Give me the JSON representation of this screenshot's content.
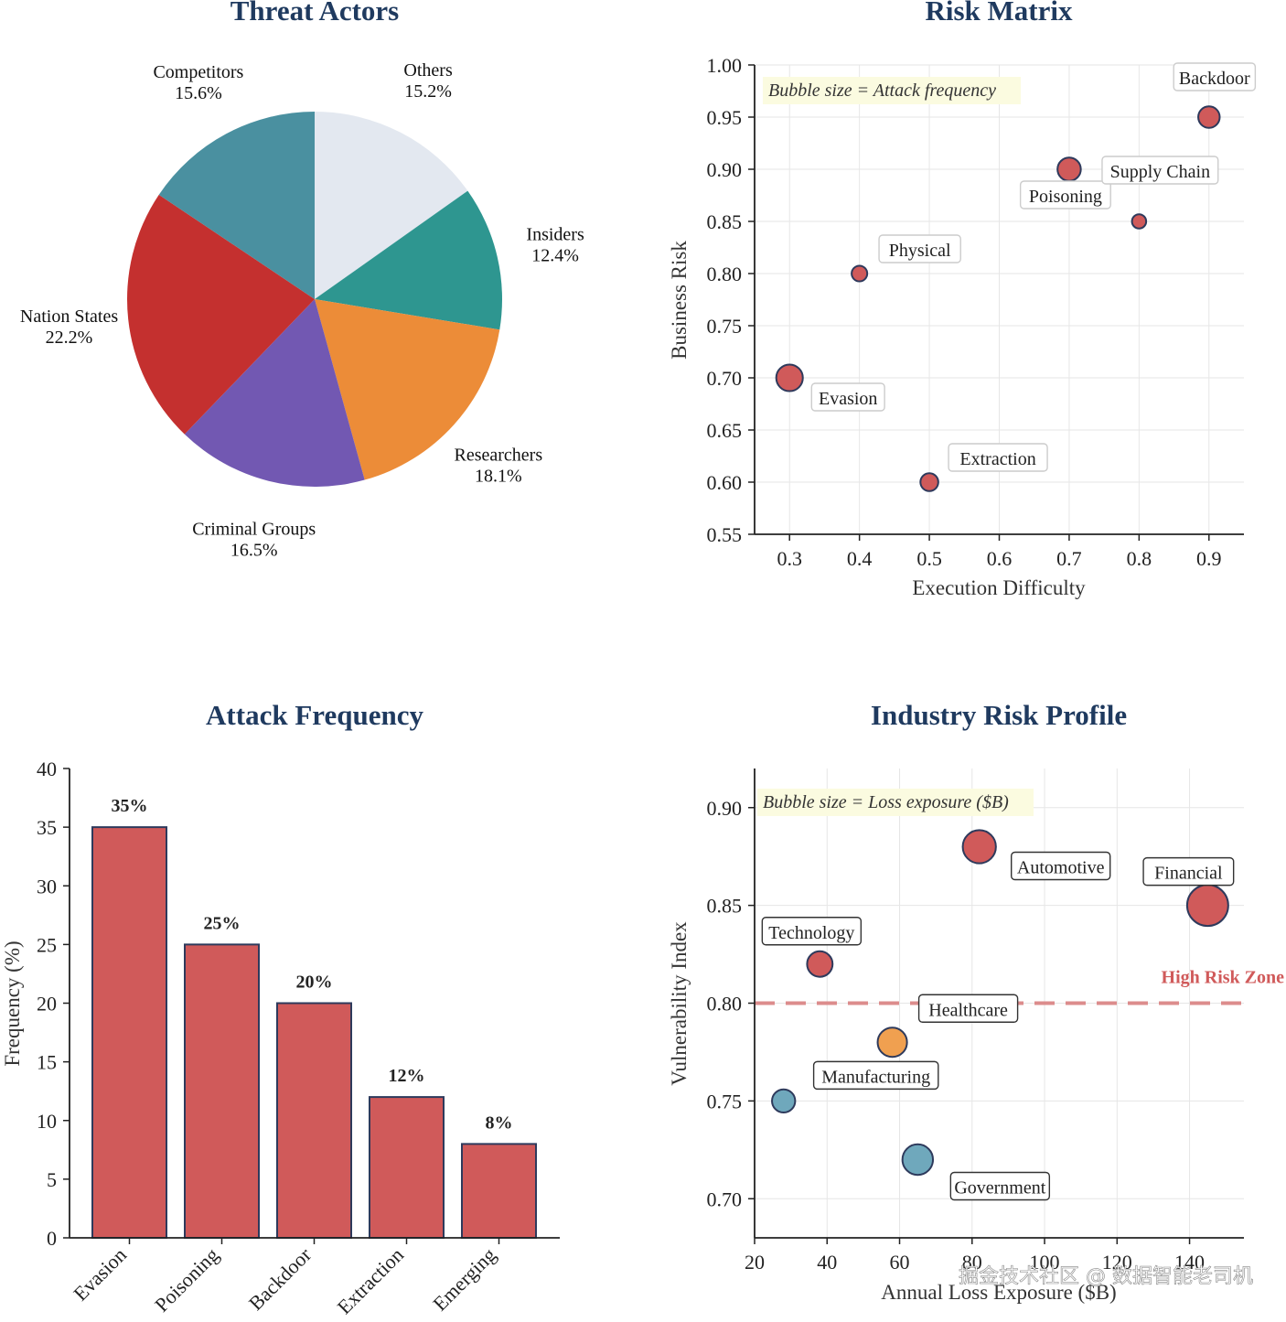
{
  "colors": {
    "title": "#1f3a5f",
    "bubble_red": "#d05a5a",
    "bubble_orange": "#f0a050",
    "bubble_blue": "#6fa8bc",
    "bubble_edge": "#2e3a5c",
    "bar_fill": "#d05a5a",
    "bar_edge": "#2e3a5c",
    "grid": "#e6e6e6",
    "note_bg": "#fbfbe0",
    "zone_line": "#dc8c8c"
  },
  "watermark": "掘金技术社区 @ 数据智能老司机",
  "chart_data": [
    {
      "id": "threat-actors",
      "type": "pie",
      "title": "Threat Actors",
      "start_angle": 90,
      "direction": "clockwise",
      "slices": [
        {
          "label": "Others",
          "pct_label": "15.2%",
          "value": 15.2,
          "color": "#e3e8f0"
        },
        {
          "label": "Insiders",
          "pct_label": "12.4%",
          "value": 12.4,
          "color": "#2e9690"
        },
        {
          "label": "Researchers",
          "pct_label": "18.1%",
          "value": 18.1,
          "color": "#ec8c38"
        },
        {
          "label": "Criminal Groups",
          "pct_label": "16.5%",
          "value": 16.5,
          "color": "#7258b2"
        },
        {
          "label": "Nation States",
          "pct_label": "22.2%",
          "value": 22.2,
          "color": "#c4302f"
        },
        {
          "label": "Competitors",
          "pct_label": "15.6%",
          "value": 15.6,
          "color": "#4a90a0"
        }
      ]
    },
    {
      "id": "risk-matrix",
      "type": "scatter",
      "title": "Risk Matrix",
      "xlabel": "Execution Difficulty",
      "ylabel": "Business Risk",
      "xlim": [
        0.25,
        0.95
      ],
      "ylim": [
        0.55,
        1.0
      ],
      "xticks": [
        "0.3",
        "0.4",
        "0.5",
        "0.6",
        "0.7",
        "0.8",
        "0.9"
      ],
      "yticks": [
        "0.55",
        "0.60",
        "0.65",
        "0.70",
        "0.75",
        "0.80",
        "0.85",
        "0.90",
        "0.95",
        "1.00"
      ],
      "grid": true,
      "note": "Bubble size = Attack frequency",
      "points": [
        {
          "label": "Evasion",
          "x": 0.3,
          "y": 0.7,
          "size": 35
        },
        {
          "label": "Poisoning",
          "x": 0.7,
          "y": 0.9,
          "size": 25
        },
        {
          "label": "Backdoor",
          "x": 0.9,
          "y": 0.95,
          "size": 20
        },
        {
          "label": "Extraction",
          "x": 0.5,
          "y": 0.6,
          "size": 12
        },
        {
          "label": "Physical",
          "x": 0.4,
          "y": 0.8,
          "size": 8
        },
        {
          "label": "Supply Chain",
          "x": 0.8,
          "y": 0.85,
          "size": 6
        }
      ]
    },
    {
      "id": "attack-frequency",
      "type": "bar",
      "title": "Attack Frequency",
      "xlabel": "",
      "ylabel": "Frequency (%)",
      "ylim": [
        0,
        40
      ],
      "yticks": [
        "0",
        "5",
        "10",
        "15",
        "20",
        "25",
        "30",
        "35",
        "40"
      ],
      "categories": [
        "Evasion",
        "Poisoning",
        "Backdoor",
        "Extraction",
        "Emerging"
      ],
      "values": [
        35,
        25,
        20,
        12,
        8
      ],
      "value_labels": [
        "35%",
        "25%",
        "20%",
        "12%",
        "8%"
      ]
    },
    {
      "id": "industry-risk-profile",
      "type": "scatter",
      "title": "Industry Risk Profile",
      "xlabel": "Annual Loss Exposure ($B)",
      "ylabel": "Vulnerability Index",
      "xlim": [
        20,
        155
      ],
      "ylim": [
        0.68,
        0.92
      ],
      "xticks": [
        "20",
        "40",
        "60",
        "80",
        "100",
        "120",
        "140"
      ],
      "yticks": [
        "0.70",
        "0.75",
        "0.80",
        "0.85",
        "0.90"
      ],
      "grid": true,
      "note": "Bubble size = Loss exposure ($B)",
      "threshold": {
        "y": 0.8,
        "label": "High Risk Zone"
      },
      "points": [
        {
          "label": "Financial",
          "x": 145,
          "y": 0.85,
          "size": 145,
          "color": "red"
        },
        {
          "label": "Automotive",
          "x": 82,
          "y": 0.88,
          "size": 82,
          "color": "red"
        },
        {
          "label": "Technology",
          "x": 38,
          "y": 0.82,
          "size": 38,
          "color": "red"
        },
        {
          "label": "Healthcare",
          "x": 58,
          "y": 0.78,
          "size": 58,
          "color": "orange"
        },
        {
          "label": "Manufacturing",
          "x": 28,
          "y": 0.75,
          "size": 28,
          "color": "blue"
        },
        {
          "label": "Government",
          "x": 65,
          "y": 0.72,
          "size": 65,
          "color": "blue"
        }
      ]
    }
  ]
}
